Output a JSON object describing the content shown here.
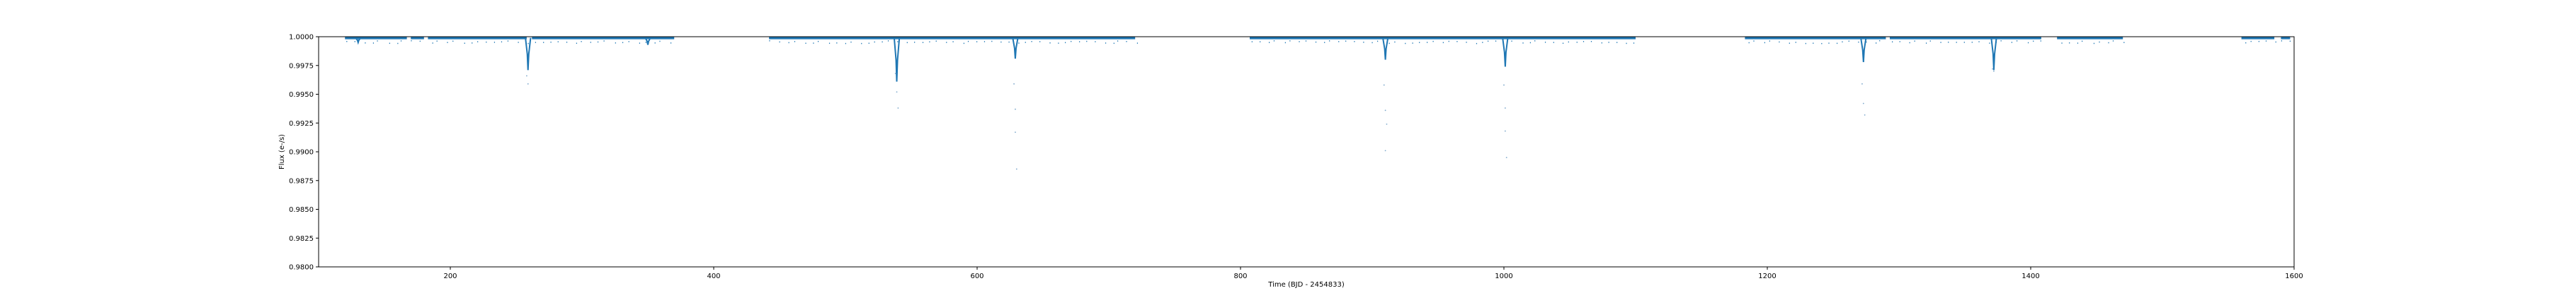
{
  "chart_data": {
    "type": "scatter",
    "title": "",
    "xlabel": "Time (BJD - 2454833)",
    "ylabel": "Flux (e-/s)",
    "xlim": [
      100,
      1600
    ],
    "ylim": [
      0.98,
      1.0
    ],
    "xticks": [
      200,
      400,
      600,
      800,
      1000,
      1200,
      1400,
      1600
    ],
    "xtick_labels": [
      "200",
      "400",
      "600",
      "800",
      "1000",
      "1200",
      "1400",
      "1600"
    ],
    "yticks": [
      0.98,
      0.9825,
      0.985,
      0.9875,
      0.99,
      0.9925,
      0.995,
      0.9975,
      1.0
    ],
    "ytick_labels": [
      "0.9800",
      "0.9825",
      "0.9850",
      "0.9875",
      "0.9900",
      "0.9925",
      "0.9950",
      "0.9975",
      "1.0000"
    ],
    "grid": false,
    "legend": "none",
    "series_color": "#1f77b4",
    "baseline_flux": 0.9999,
    "segments": [
      [
        120,
        167
      ],
      [
        170,
        180
      ],
      [
        183,
        258
      ],
      [
        262,
        370
      ],
      [
        442,
        720
      ],
      [
        807,
        1100
      ],
      [
        1183,
        1290
      ],
      [
        1293,
        1408
      ],
      [
        1420,
        1470
      ],
      [
        1560,
        1585
      ],
      [
        1590,
        1597
      ]
    ],
    "transits": [
      {
        "time": 130,
        "depth": 0.0004
      },
      {
        "time": 259,
        "depth": 0.0028
      },
      {
        "time": 350,
        "depth": 0.0006
      },
      {
        "time": 539,
        "depth": 0.0038
      },
      {
        "time": 629,
        "depth": 0.0018
      },
      {
        "time": 910,
        "depth": 0.0019
      },
      {
        "time": 1001,
        "depth": 0.0025
      },
      {
        "time": 1273,
        "depth": 0.0021
      },
      {
        "time": 1372,
        "depth": 0.0028
      }
    ],
    "outliers": [
      {
        "x": 258,
        "y": 0.9966
      },
      {
        "x": 259,
        "y": 0.9959
      },
      {
        "x": 538,
        "y": 0.9968
      },
      {
        "x": 539,
        "y": 0.9952
      },
      {
        "x": 540,
        "y": 0.9938
      },
      {
        "x": 628,
        "y": 0.9959
      },
      {
        "x": 629,
        "y": 0.9937
      },
      {
        "x": 629,
        "y": 0.9917
      },
      {
        "x": 630,
        "y": 0.9885
      },
      {
        "x": 909,
        "y": 0.9958
      },
      {
        "x": 910,
        "y": 0.9936
      },
      {
        "x": 911,
        "y": 0.9924
      },
      {
        "x": 910,
        "y": 0.9901
      },
      {
        "x": 1000,
        "y": 0.9958
      },
      {
        "x": 1001,
        "y": 0.9938
      },
      {
        "x": 1001,
        "y": 0.9918
      },
      {
        "x": 1002,
        "y": 0.9895
      },
      {
        "x": 1272,
        "y": 0.9959
      },
      {
        "x": 1273,
        "y": 0.9942
      },
      {
        "x": 1274,
        "y": 0.9932
      },
      {
        "x": 1371,
        "y": 0.9972
      },
      {
        "x": 1372,
        "y": 0.997
      }
    ]
  }
}
